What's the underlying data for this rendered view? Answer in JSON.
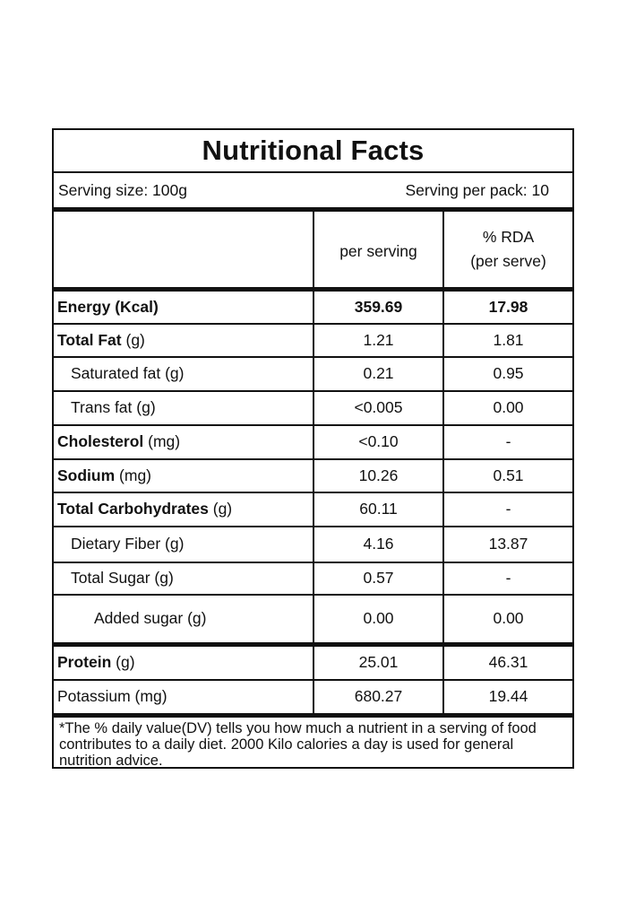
{
  "title": "Nutritional Facts",
  "serving_size": "Serving size: 100g",
  "servings_per_pack": "Serving per pack: 10",
  "columns": {
    "per_serving": "per serving",
    "rda_line1": "% RDA",
    "rda_line2": "(per serve)"
  },
  "rows": [
    {
      "name_bold": "Energy (Kcal)",
      "name_rest": "",
      "per_serving": "359.69",
      "rda": "17.98"
    },
    {
      "name_bold": "Total Fat",
      "name_rest": " (g)",
      "per_serving": "1.21",
      "rda": "1.81"
    },
    {
      "name_bold": "",
      "name_rest": "Saturated fat (g)",
      "per_serving": "0.21",
      "rda": "0.95"
    },
    {
      "name_bold": "",
      "name_rest": "Trans fat (g)",
      "per_serving": "<0.005",
      "rda": "0.00"
    },
    {
      "name_bold": "Cholesterol",
      "name_rest": " (mg)",
      "per_serving": "<0.10",
      "rda": "-"
    },
    {
      "name_bold": "Sodium",
      "name_rest": " (mg)",
      "per_serving": "10.26",
      "rda": "0.51"
    },
    {
      "name_bold": "Total Carbohydrates",
      "name_rest": " (g)",
      "per_serving": "60.11",
      "rda": "-"
    },
    {
      "name_bold": "",
      "name_rest": "Dietary Fiber (g)",
      "per_serving": "4.16",
      "rda": "13.87"
    },
    {
      "name_bold": "",
      "name_rest": "Total Sugar (g)",
      "per_serving": "0.57",
      "rda": "-"
    },
    {
      "name_bold": "",
      "name_rest": "Added sugar (g)",
      "per_serving": "0.00",
      "rda": "0.00"
    },
    {
      "name_bold": "Protein",
      "name_rest": " (g)",
      "per_serving": "25.01",
      "rda": "46.31"
    },
    {
      "name_bold": "",
      "name_rest": "Potassium (mg)",
      "per_serving": "680.27",
      "rda": "19.44"
    }
  ],
  "footnote": "*The % daily value(DV) tells you how much a nutrient in a serving of food contributes to a daily diet. 2000 Kilo calories a day is used for general nutrition advice."
}
